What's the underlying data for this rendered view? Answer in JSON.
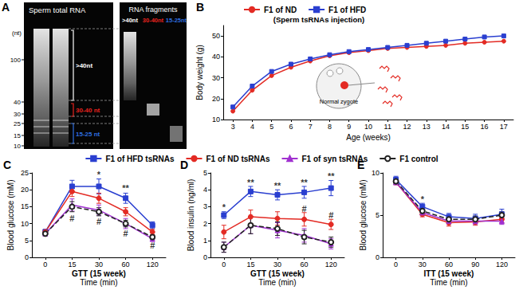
{
  "gel": {
    "panel_label": "A",
    "title": "Sperm total RNA",
    "subtitle": "RNA fragments",
    "unit": "(nt)",
    "ladder": [
      100,
      40,
      30,
      25,
      15,
      10
    ],
    "brackets": [
      {
        "label": ">40nt",
        "color": "#ffffff"
      },
      {
        "label": "30-40 nt",
        "color": "#e8231f"
      },
      {
        "label": "15-25 nt",
        "color": "#2f6fe0"
      }
    ],
    "lanes": [
      {
        "label": ">40nt",
        "color": "#ffffff"
      },
      {
        "label": "30-40nt",
        "color": "#e8231f"
      },
      {
        "label": "15-25nt",
        "color": "#2f6fe0"
      }
    ]
  },
  "chart_data": [
    {
      "type": "line",
      "panel_label": "B",
      "xlabel": "Age (weeks)",
      "ylabel": "Body weight (g)",
      "x": [
        3,
        4,
        5,
        6,
        7,
        8,
        9,
        10,
        11,
        12,
        13,
        14,
        15,
        16,
        17
      ],
      "xlim": [
        2.5,
        17.5
      ],
      "xticks": [
        3,
        4,
        5,
        6,
        7,
        8,
        9,
        10,
        11,
        12,
        13,
        14,
        15,
        16,
        17
      ],
      "ylim": [
        10,
        55
      ],
      "yticks": [
        10,
        20,
        30,
        40,
        50
      ],
      "grid": false,
      "legend": "upper left",
      "annotations": [
        "(Sperm tsRNAs injection)",
        "Normal zygote"
      ],
      "series": [
        {
          "name": "F1 of ND",
          "color": "#e32b24",
          "marker": "circle",
          "line_style": "solid",
          "values": [
            14,
            24,
            31,
            35,
            38,
            40.5,
            42,
            43,
            44,
            44.5,
            45,
            45.5,
            46.5,
            47,
            47.5
          ]
        },
        {
          "name": "F1 of HFD",
          "color": "#2a3fd0",
          "marker": "square",
          "line_style": "solid",
          "values": [
            16,
            26,
            33,
            36.5,
            39,
            41,
            42.5,
            43.5,
            44.5,
            45.5,
            46.5,
            47.5,
            48.5,
            49.5,
            50
          ]
        }
      ]
    },
    {
      "type": "line",
      "panel_label": "C",
      "subtitle": "GTT (15 week)",
      "xlabel": "Time (min)",
      "ylabel": "Blood glucose (mM)",
      "categories": [
        0,
        15,
        30,
        60,
        120
      ],
      "ylim": [
        0,
        25
      ],
      "yticks": [
        0,
        5,
        10,
        15,
        20,
        25
      ],
      "grid": false,
      "legend": "top",
      "annotations": [
        {
          "x": 30,
          "y": 24.5,
          "text": "*"
        },
        {
          "x": 60,
          "y": 20.5,
          "text": "**"
        },
        {
          "x": 15,
          "y": 11.5,
          "text": "#"
        },
        {
          "x": 30,
          "y": 10.5,
          "text": "#"
        },
        {
          "x": 60,
          "y": 7,
          "text": "#"
        },
        {
          "x": 120,
          "y": 3.5,
          "text": "#"
        }
      ],
      "series": [
        {
          "name": "F1 of HFD tsRNAs",
          "color": "#2a3fd0",
          "marker": "square",
          "line_style": "solid",
          "values": [
            7.5,
            21,
            21,
            17.5,
            9.5
          ],
          "errors": [
            0.8,
            1.8,
            2.2,
            1.5,
            1
          ]
        },
        {
          "name": "F1 of ND tsRNAs",
          "color": "#e32b24",
          "marker": "circle",
          "line_style": "solid",
          "values": [
            7.5,
            19.5,
            17.5,
            13.5,
            7.5
          ],
          "errors": [
            0.7,
            1.5,
            1.5,
            1.2,
            0.8
          ]
        },
        {
          "name": "F1 of syn tsRNAs",
          "color": "#a030d0",
          "marker": "triangle",
          "line_style": "solid",
          "values": [
            7,
            15.5,
            14,
            10,
            5.5
          ],
          "errors": [
            0.6,
            1.8,
            1.5,
            1.5,
            0.8
          ]
        },
        {
          "name": "F1 control",
          "color": "#222222",
          "marker": "open_circle",
          "line_style": "dashed",
          "values": [
            7,
            15,
            13.5,
            10,
            6
          ],
          "errors": [
            0.5,
            1.5,
            1.2,
            1,
            0.6
          ]
        }
      ]
    },
    {
      "type": "line",
      "panel_label": "D",
      "subtitle": "GTT (15 week)",
      "xlabel": "Time (min)",
      "ylabel": "Blood insulin (ng/ml)",
      "categories": [
        0,
        15,
        30,
        60,
        120
      ],
      "ylim": [
        0,
        5
      ],
      "yticks": [
        0,
        1,
        2,
        3,
        4,
        5
      ],
      "grid": false,
      "annotations": [
        {
          "x": 0,
          "y": 2.95,
          "text": "*"
        },
        {
          "x": 15,
          "y": 4.45,
          "text": "**"
        },
        {
          "x": 30,
          "y": 4.25,
          "text": "**"
        },
        {
          "x": 60,
          "y": 4.45,
          "text": "**"
        },
        {
          "x": 120,
          "y": 4.8,
          "text": "**"
        },
        {
          "x": 60,
          "y": 2.9,
          "text": "#"
        },
        {
          "x": 120,
          "y": 2.5,
          "text": "#"
        }
      ],
      "series": [
        {
          "name": "F1 of HFD tsRNAs",
          "color": "#2a3fd0",
          "marker": "square",
          "line_style": "solid",
          "values": [
            2.5,
            3.9,
            3.7,
            3.85,
            4.1
          ],
          "errors": [
            0.2,
            0.3,
            0.3,
            0.35,
            0.45
          ]
        },
        {
          "name": "F1 of ND tsRNAs",
          "color": "#e32b24",
          "marker": "circle",
          "line_style": "solid",
          "values": [
            1.5,
            2.4,
            2.3,
            2.25,
            1.95
          ],
          "errors": [
            0.4,
            0.4,
            0.4,
            0.4,
            0.3
          ]
        },
        {
          "name": "F1 of syn tsRNAs",
          "color": "#a030d0",
          "marker": "triangle",
          "line_style": "solid",
          "values": [
            0.6,
            1.9,
            1.6,
            1.3,
            0.8
          ],
          "errors": [
            0.3,
            0.5,
            0.45,
            0.4,
            0.3
          ]
        },
        {
          "name": "F1 control",
          "color": "#222222",
          "marker": "open_circle",
          "line_style": "dashed",
          "values": [
            0.6,
            1.9,
            1.7,
            1.2,
            0.9
          ],
          "errors": [
            0.3,
            0.5,
            0.4,
            0.4,
            0.3
          ]
        }
      ]
    },
    {
      "type": "line",
      "panel_label": "E",
      "subtitle": "ITT (15 week)",
      "xlabel": "Time (min)",
      "ylabel": "Blood glucose (mM)",
      "categories": [
        0,
        30,
        60,
        90,
        120
      ],
      "ylim": [
        0,
        10
      ],
      "yticks": [
        0,
        5,
        10
      ],
      "grid": false,
      "annotations": [
        {
          "x": 30,
          "y": 6.9,
          "text": "*"
        }
      ],
      "series": [
        {
          "name": "F1 of HFD tsRNAs",
          "color": "#2a3fd0",
          "marker": "square",
          "line_style": "solid",
          "values": [
            9.2,
            6,
            4.8,
            4.6,
            5.1
          ],
          "errors": [
            0.4,
            0.4,
            0.4,
            0.5,
            0.6
          ]
        },
        {
          "name": "F1 of ND tsRNAs",
          "color": "#e32b24",
          "marker": "circle",
          "line_style": "solid",
          "values": [
            8.9,
            5.1,
            4.1,
            4.2,
            4.5
          ],
          "errors": [
            0.3,
            0.3,
            0.4,
            0.4,
            0.4
          ]
        },
        {
          "name": "F1 of syn tsRNAs",
          "color": "#a030d0",
          "marker": "triangle",
          "line_style": "solid",
          "values": [
            8.9,
            5.3,
            4.3,
            4.3,
            4.3
          ],
          "errors": [
            0.3,
            0.3,
            0.4,
            0.4,
            0.4
          ]
        },
        {
          "name": "F1 control",
          "color": "#222222",
          "marker": "open_circle",
          "line_style": "dashed",
          "values": [
            9,
            5.5,
            4.5,
            4.5,
            5
          ],
          "errors": [
            0.3,
            0.4,
            0.4,
            0.4,
            0.4
          ]
        }
      ]
    }
  ]
}
